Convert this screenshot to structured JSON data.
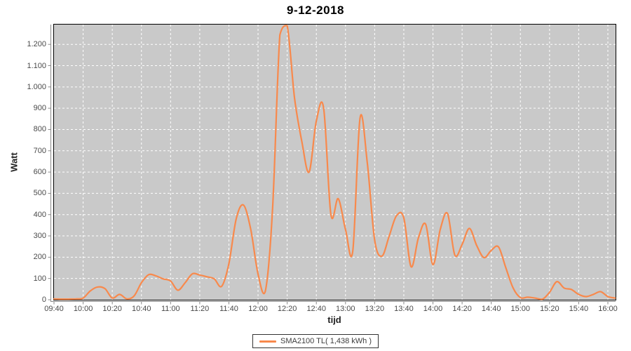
{
  "title": "9-12-2018",
  "axes": {
    "y_label": "Watt",
    "x_label": "tijd",
    "y_tick_labels": [
      "0",
      "100",
      "200",
      "300",
      "400",
      "500",
      "600",
      "700",
      "800",
      "900",
      "1.000",
      "1.100",
      "1.200"
    ],
    "y_tick_values": [
      0,
      100,
      200,
      300,
      400,
      500,
      600,
      700,
      800,
      900,
      1000,
      1100,
      1200
    ],
    "x_tick_labels": [
      "09:40",
      "10:00",
      "10:20",
      "10:40",
      "11:00",
      "11:20",
      "11:40",
      "12:00",
      "12:20",
      "12:40",
      "13:00",
      "13:20",
      "13:40",
      "14:00",
      "14:20",
      "14:40",
      "15:00",
      "15:20",
      "15:40",
      "16:00"
    ]
  },
  "legend": {
    "label": "SMA2100 TL( 1,438 kWh )"
  },
  "colors": {
    "line": "#F8894C",
    "plot_bg": "#C9C9C9",
    "grid": "#FFFFFF",
    "axis": "#8a8a8a",
    "plot_border": "#000000"
  },
  "chart_data": {
    "type": "line",
    "title": "9-12-2018",
    "xlabel": "tijd",
    "ylabel": "Watt",
    "legend_entry": "SMA2100 TL( 1,438 kWh )",
    "grid": true,
    "legend_position": "bottom",
    "xlim": [
      "09:40",
      "16:00"
    ],
    "ylim": [
      0,
      1293
    ],
    "x": [
      "09:40",
      "09:45",
      "09:50",
      "09:55",
      "10:00",
      "10:05",
      "10:10",
      "10:15",
      "10:20",
      "10:25",
      "10:30",
      "10:35",
      "10:40",
      "10:45",
      "10:50",
      "10:55",
      "11:00",
      "11:05",
      "11:10",
      "11:15",
      "11:20",
      "11:25",
      "11:30",
      "11:35",
      "11:40",
      "11:45",
      "11:50",
      "11:55",
      "12:00",
      "12:05",
      "12:10",
      "12:15",
      "12:20",
      "12:25",
      "12:30",
      "12:35",
      "12:40",
      "12:45",
      "12:50",
      "12:55",
      "13:00",
      "13:05",
      "13:10",
      "13:15",
      "13:20",
      "13:25",
      "13:30",
      "13:35",
      "13:40",
      "13:45",
      "13:50",
      "13:55",
      "14:00",
      "14:05",
      "14:10",
      "14:15",
      "14:20",
      "14:25",
      "14:30",
      "14:35",
      "14:40",
      "14:45",
      "14:50",
      "14:55",
      "15:00",
      "15:05",
      "15:10",
      "15:15",
      "15:20",
      "15:25",
      "15:30",
      "15:35",
      "15:40",
      "15:45",
      "15:50",
      "15:55",
      "16:00",
      "16:05"
    ],
    "values": [
      4,
      3,
      3,
      4,
      8,
      42,
      60,
      52,
      8,
      25,
      4,
      18,
      80,
      118,
      112,
      98,
      88,
      45,
      80,
      122,
      116,
      108,
      98,
      63,
      170,
      380,
      445,
      330,
      120,
      40,
      430,
      1245,
      1288,
      950,
      745,
      600,
      840,
      900,
      400,
      475,
      330,
      230,
      855,
      640,
      280,
      205,
      300,
      395,
      385,
      155,
      290,
      355,
      165,
      330,
      405,
      210,
      260,
      335,
      255,
      198,
      232,
      248,
      150,
      55,
      10,
      12,
      8,
      2,
      35,
      85,
      55,
      48,
      25,
      15,
      25,
      38,
      15,
      8
    ]
  }
}
